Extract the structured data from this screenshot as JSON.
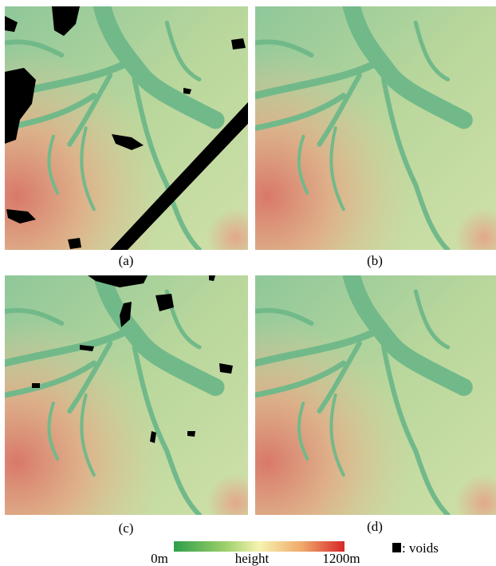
{
  "panels": [
    {
      "label": "(a)"
    },
    {
      "label": "(b)"
    },
    {
      "label": "(c)"
    },
    {
      "label": "(d)"
    }
  ],
  "colorbar": {
    "min_label": "0m",
    "label": "height",
    "max_label": "1200m"
  },
  "legend": {
    "label": ": voids"
  }
}
